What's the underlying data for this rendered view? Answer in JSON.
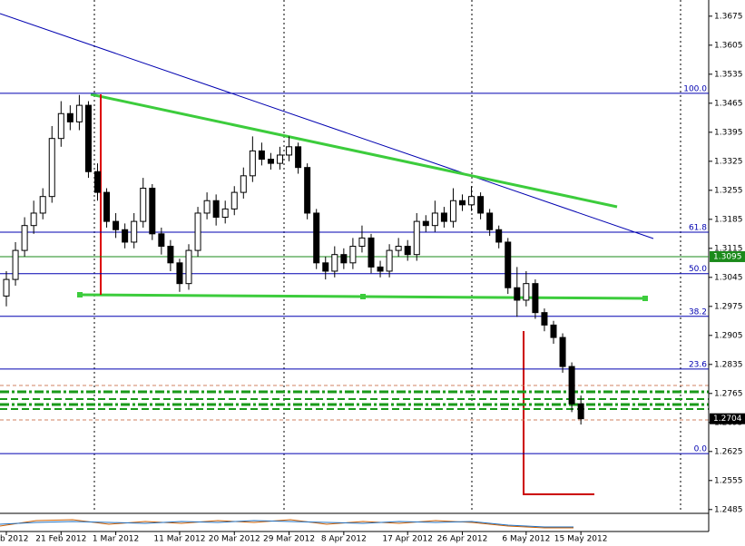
{
  "chart_data": {
    "type": "candlestick",
    "categories": [
      "b 2012",
      null,
      null,
      null,
      null,
      null,
      "21 Feb 2012",
      null,
      null,
      null,
      null,
      null,
      "1 Mar 2012",
      null,
      null,
      null,
      null,
      null,
      null,
      "11 Mar 2012",
      null,
      null,
      null,
      null,
      null,
      "20 Mar 2012",
      null,
      null,
      null,
      null,
      null,
      "29 Mar 2012",
      null,
      null,
      null,
      null,
      null,
      "8 Apr 2012",
      null,
      null,
      null,
      null,
      null,
      null,
      "17 Apr 2012",
      null,
      null,
      null,
      null,
      null,
      "26 Apr 2012",
      null,
      null,
      null,
      null,
      null,
      null,
      "6 May 2012",
      null,
      null,
      null,
      null,
      null,
      "15 May 2012"
    ],
    "open": [
      1.3,
      1.304,
      1.311,
      1.317,
      1.32,
      1.324,
      1.338,
      1.344,
      1.342,
      1.346,
      1.33,
      1.325,
      1.318,
      1.316,
      1.313,
      1.318,
      1.326,
      1.315,
      1.312,
      1.308,
      1.303,
      1.311,
      1.32,
      1.323,
      1.319,
      1.321,
      1.325,
      1.329,
      1.335,
      1.333,
      1.332,
      1.334,
      1.336,
      1.331,
      1.32,
      1.308,
      1.306,
      1.31,
      1.308,
      1.312,
      1.314,
      1.307,
      1.306,
      1.311,
      1.312,
      1.31,
      1.318,
      1.317,
      1.32,
      1.318,
      1.323,
      1.322,
      1.324,
      1.32,
      1.316,
      1.313,
      1.302,
      1.299,
      1.303,
      1.296,
      1.293,
      1.29,
      1.283,
      1.274
    ],
    "high": [
      1.306,
      1.313,
      1.319,
      1.323,
      1.326,
      1.341,
      1.347,
      1.346,
      1.3485,
      1.347,
      1.332,
      1.326,
      1.32,
      1.3175,
      1.32,
      1.3285,
      1.327,
      1.3165,
      1.3135,
      1.309,
      1.3125,
      1.3215,
      1.325,
      1.3245,
      1.323,
      1.3265,
      1.331,
      1.3385,
      1.337,
      1.3345,
      1.336,
      1.3385,
      1.337,
      1.332,
      1.321,
      1.3095,
      1.312,
      1.3115,
      1.314,
      1.317,
      1.315,
      1.3085,
      1.3125,
      1.314,
      1.3135,
      1.32,
      1.3195,
      1.323,
      1.3215,
      1.326,
      1.3245,
      1.3265,
      1.325,
      1.321,
      1.317,
      1.314,
      1.307,
      1.306,
      1.304,
      1.297,
      1.294,
      1.291,
      1.284,
      1.276
    ],
    "low": [
      1.2975,
      1.3025,
      1.3095,
      1.315,
      1.3185,
      1.3225,
      1.336,
      1.34,
      1.34,
      1.3285,
      1.323,
      1.3165,
      1.314,
      1.3115,
      1.3115,
      1.3165,
      1.3135,
      1.31,
      1.306,
      1.301,
      1.3015,
      1.3095,
      1.3185,
      1.317,
      1.3175,
      1.3195,
      1.3235,
      1.3275,
      1.3315,
      1.3305,
      1.3305,
      1.3325,
      1.3295,
      1.3185,
      1.3065,
      1.304,
      1.3045,
      1.3065,
      1.3065,
      1.3105,
      1.3055,
      1.3045,
      1.3045,
      1.3095,
      1.3085,
      1.3085,
      1.3155,
      1.3155,
      1.3165,
      1.3165,
      1.3205,
      1.3205,
      1.3185,
      1.3145,
      1.3115,
      1.3005,
      1.295,
      1.2975,
      1.2945,
      1.2915,
      1.2885,
      1.2815,
      1.272,
      1.269
    ],
    "close": [
      1.304,
      1.311,
      1.317,
      1.32,
      1.324,
      1.338,
      1.344,
      1.342,
      1.346,
      1.33,
      1.325,
      1.318,
      1.316,
      1.313,
      1.318,
      1.326,
      1.315,
      1.312,
      1.308,
      1.303,
      1.311,
      1.32,
      1.323,
      1.319,
      1.321,
      1.325,
      1.329,
      1.335,
      1.333,
      1.332,
      1.334,
      1.336,
      1.331,
      1.32,
      1.308,
      1.306,
      1.31,
      1.308,
      1.312,
      1.314,
      1.307,
      1.306,
      1.311,
      1.312,
      1.31,
      1.318,
      1.317,
      1.32,
      1.318,
      1.323,
      1.322,
      1.324,
      1.32,
      1.316,
      1.313,
      1.302,
      1.299,
      1.303,
      1.296,
      1.293,
      1.29,
      1.283,
      1.274,
      1.2704
    ],
    "ylim": [
      1.2478,
      1.3714
    ],
    "yticks": [
      1.3675,
      1.3605,
      1.3535,
      1.3465,
      1.3395,
      1.3325,
      1.3255,
      1.3185,
      1.3115,
      1.3045,
      1.2975,
      1.2905,
      1.2835,
      1.2765,
      1.2695,
      1.2625,
      1.2555,
      1.2485
    ],
    "fib_levels": [
      {
        "value": 1.3489,
        "label": "100.0"
      },
      {
        "value": 1.3154,
        "label": "61.8"
      },
      {
        "value": 1.3054,
        "label": "50.0"
      },
      {
        "value": 1.2951,
        "label": "38.2"
      },
      {
        "value": 1.2824,
        "label": "23.6"
      },
      {
        "value": 1.262,
        "label": "0.0"
      }
    ],
    "level_line": 1.3095,
    "current_price": 1.2704,
    "up_color": "#ffffff",
    "down_color": "#000000"
  }
}
